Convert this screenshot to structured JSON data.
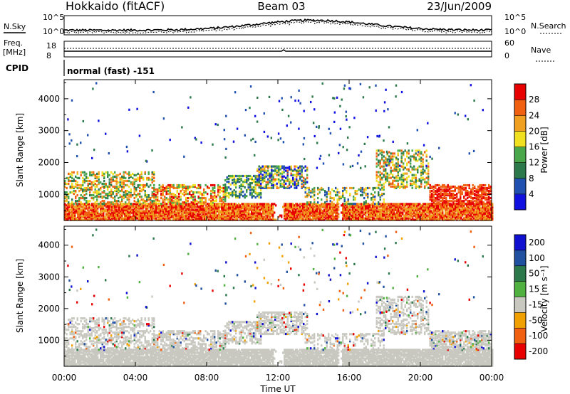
{
  "header": {
    "station": "Hokkaido (fitACF)",
    "beam": "Beam 03",
    "date": "23/Jun/2009"
  },
  "noise_panel": {
    "left_label": "N.Sky",
    "right_label": "N.Search",
    "left_ticks": [
      "10^5",
      "10^0"
    ],
    "right_ticks": [
      "10^5",
      "10^0"
    ]
  },
  "freq_panel": {
    "left_label_line1": "Freq.",
    "left_label_line2": "[MHz]",
    "left_ticks": [
      "18",
      "8"
    ],
    "right_label": "Nave",
    "right_ticks": [
      "60",
      "0"
    ]
  },
  "cpid_panel": {
    "label": "CPID",
    "program": "normal (fast) -151"
  },
  "power_colorbar": {
    "label": "Power [dB]",
    "ticks": [
      "4",
      "8",
      "12",
      "16",
      "20",
      "24",
      "28"
    ],
    "colors": [
      "#1010e0",
      "#2050b0",
      "#2c7a4c",
      "#49a74a",
      "#f0e020",
      "#f0a020",
      "#f06010",
      "#e80000"
    ]
  },
  "velocity_colorbar": {
    "label": "Velocity [m s⁻¹]",
    "ticks": [
      "200",
      "100",
      "50",
      "15",
      "-15",
      "-50",
      "-100",
      "-200"
    ],
    "colors": [
      "#1010d0",
      "#2050a0",
      "#2c7a4c",
      "#50b040",
      "#c8c8c0",
      "#f0a000",
      "#f06010",
      "#e80000"
    ]
  },
  "chart_data": [
    {
      "type": "heatmap",
      "panel": "power",
      "ylabel": "Slant Range [km]",
      "yticks": [
        1000,
        2000,
        3000,
        4000
      ],
      "ylim": [
        180,
        4600
      ],
      "xlim": [
        "00:00",
        "24:00"
      ],
      "xticks": [
        "00:00",
        "04:00",
        "08:00",
        "12:00",
        "16:00",
        "20:00",
        "00:00"
      ]
    },
    {
      "type": "heatmap",
      "panel": "velocity",
      "ylabel": "Slant Range [km]",
      "yticks": [
        1000,
        2000,
        3000,
        4000
      ],
      "ylim": [
        180,
        4600
      ],
      "xlim": [
        "00:00",
        "24:00"
      ],
      "xticks": [
        "00:00",
        "04:00",
        "08:00",
        "12:00",
        "16:00",
        "20:00",
        "00:00"
      ],
      "xlabel": "Time UT"
    }
  ]
}
